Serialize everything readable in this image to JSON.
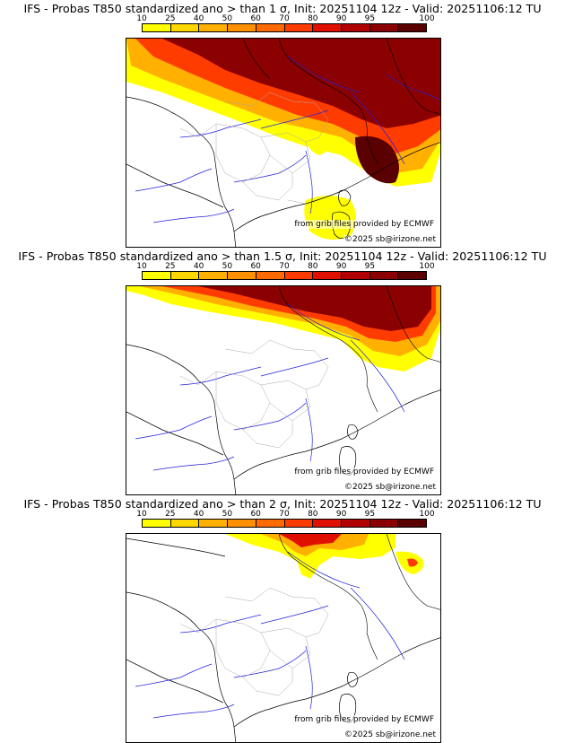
{
  "panels": [
    {
      "title": "IFS - Probas T850  standardized ano > than 1 σ, Init: 20251104 12z - Valid: 20251106:12 TU",
      "sigma": "1",
      "credit_grib": "from grib files provided by ECMWF",
      "credit_copyright": "©2025 sb@irizone.net"
    },
    {
      "title": "IFS - Probas T850  standardized ano > than 1.5 σ, Init: 20251104 12z - Valid: 20251106:12 TU",
      "sigma": "1.5",
      "credit_grib": "from grib files provided by ECMWF",
      "credit_copyright": "©2025 sb@irizone.net"
    },
    {
      "title": "IFS - Probas T850  standardized ano > than 2 σ, Init: 20251104 12z - Valid: 20251106:12 TU",
      "sigma": "2",
      "credit_grib": "from grib files provided by ECMWF",
      "credit_copyright": "©2025 sb@irizone.net"
    }
  ],
  "colorbar": {
    "labels": [
      "10",
      "25",
      "40",
      "50",
      "60",
      "70",
      "80",
      "90",
      "95",
      "100"
    ],
    "colors": [
      "#ffff00",
      "#ffd700",
      "#ffb000",
      "#ff9000",
      "#ff6a00",
      "#ff3c00",
      "#e01000",
      "#b00000",
      "#8b0000",
      "#5a0000"
    ]
  },
  "legend_units": "%",
  "colors": {
    "coast": "#000000",
    "rivers": "#2222dd",
    "borders": "#aaaaaa"
  }
}
